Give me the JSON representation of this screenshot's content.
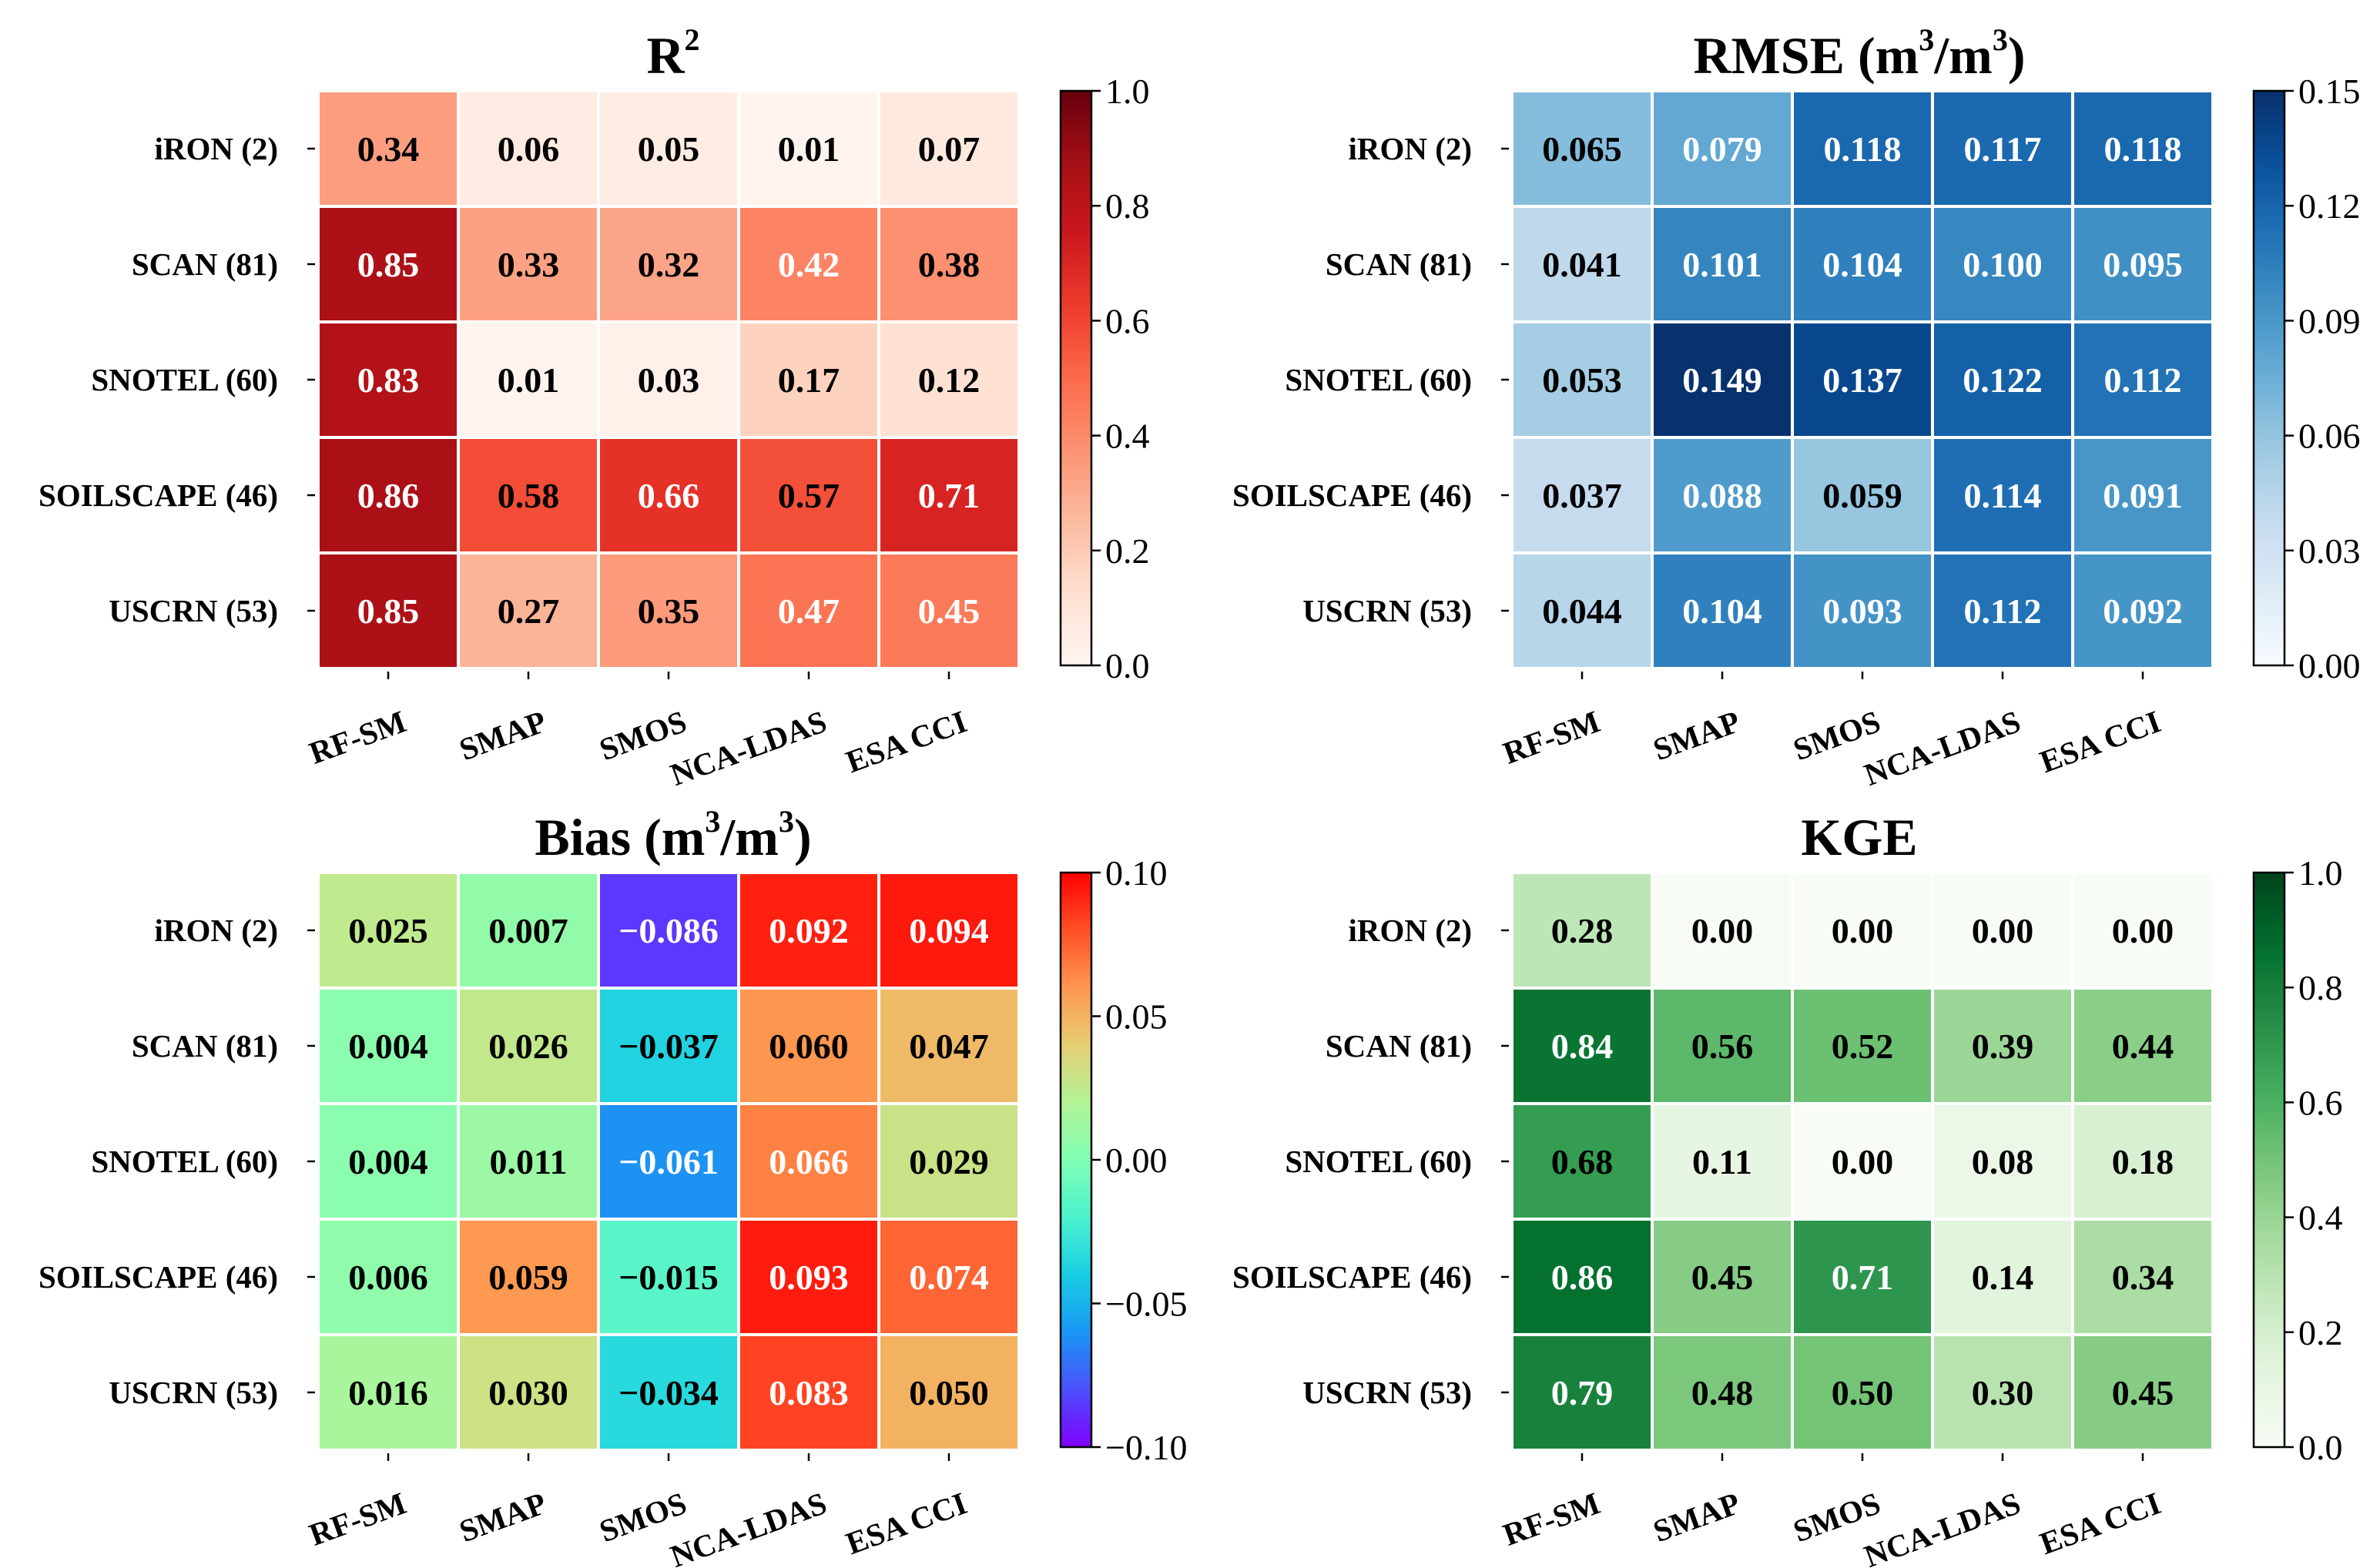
{
  "chart_data": [
    {
      "id": "r2",
      "type": "heatmap",
      "title_main": "R",
      "title_sup": "2",
      "title_tail": "",
      "rows": [
        "iRON (2)",
        "SCAN (81)",
        "SNOTEL (60)",
        "SOILSCAPE (46)",
        "USCRN (53)"
      ],
      "columns": [
        "RF-SM",
        "SMAP",
        "SMOS",
        "NCA-LDAS",
        "ESA CCI"
      ],
      "values": [
        [
          0.34,
          0.06,
          0.05,
          0.01,
          0.07
        ],
        [
          0.85,
          0.33,
          0.32,
          0.42,
          0.38
        ],
        [
          0.83,
          0.01,
          0.03,
          0.17,
          0.12
        ],
        [
          0.86,
          0.58,
          0.66,
          0.57,
          0.71
        ],
        [
          0.85,
          0.27,
          0.35,
          0.47,
          0.45
        ]
      ],
      "labels": [
        [
          "0.34",
          "0.06",
          "0.05",
          "0.01",
          "0.07"
        ],
        [
          "0.85",
          "0.33",
          "0.32",
          "0.42",
          "0.38"
        ],
        [
          "0.83",
          "0.01",
          "0.03",
          "0.17",
          "0.12"
        ],
        [
          "0.86",
          "0.58",
          "0.66",
          "0.57",
          "0.71"
        ],
        [
          "0.85",
          "0.27",
          "0.35",
          "0.47",
          "0.45"
        ]
      ],
      "colormap": "Reds",
      "vmin": 0.0,
      "vmax": 1.0,
      "colorbar_ticks": [
        0.0,
        0.2,
        0.4,
        0.6,
        0.8,
        1.0
      ],
      "colorbar_tick_labels": [
        "0.0",
        "0.2",
        "0.4",
        "0.6",
        "0.8",
        "1.0"
      ]
    },
    {
      "id": "rmse",
      "type": "heatmap",
      "title_main": "RMSE (m",
      "title_sup": "3",
      "title_tail": "/m",
      "title_sup2": "3",
      "title_close": ")",
      "rows": [
        "iRON (2)",
        "SCAN (81)",
        "SNOTEL (60)",
        "SOILSCAPE (46)",
        "USCRN (53)"
      ],
      "columns": [
        "RF-SM",
        "SMAP",
        "SMOS",
        "NCA-LDAS",
        "ESA CCI"
      ],
      "values": [
        [
          0.065,
          0.079,
          0.118,
          0.117,
          0.118
        ],
        [
          0.041,
          0.101,
          0.104,
          0.1,
          0.095
        ],
        [
          0.053,
          0.149,
          0.137,
          0.122,
          0.112
        ],
        [
          0.037,
          0.088,
          0.059,
          0.114,
          0.091
        ],
        [
          0.044,
          0.104,
          0.093,
          0.112,
          0.092
        ]
      ],
      "labels": [
        [
          "0.065",
          "0.079",
          "0.118",
          "0.117",
          "0.118"
        ],
        [
          "0.041",
          "0.101",
          "0.104",
          "0.100",
          "0.095"
        ],
        [
          "0.053",
          "0.149",
          "0.137",
          "0.122",
          "0.112"
        ],
        [
          "0.037",
          "0.088",
          "0.059",
          "0.114",
          "0.091"
        ],
        [
          "0.044",
          "0.104",
          "0.093",
          "0.112",
          "0.092"
        ]
      ],
      "colormap": "Blues",
      "vmin": 0.0,
      "vmax": 0.15,
      "colorbar_ticks": [
        0.0,
        0.03,
        0.06,
        0.09,
        0.12,
        0.15
      ],
      "colorbar_tick_labels": [
        "0.00",
        "0.03",
        "0.06",
        "0.09",
        "0.12",
        "0.15"
      ]
    },
    {
      "id": "bias",
      "type": "heatmap",
      "title_main": "Bias (m",
      "title_sup": "3",
      "title_tail": "/m",
      "title_sup2": "3",
      "title_close": ")",
      "rows": [
        "iRON (2)",
        "SCAN (81)",
        "SNOTEL (60)",
        "SOILSCAPE (46)",
        "USCRN (53)"
      ],
      "columns": [
        "RF-SM",
        "SMAP",
        "SMOS",
        "NCA-LDAS",
        "ESA CCI"
      ],
      "values": [
        [
          0.025,
          0.007,
          -0.086,
          0.092,
          0.094
        ],
        [
          0.004,
          0.026,
          -0.037,
          0.06,
          0.047
        ],
        [
          0.004,
          0.011,
          -0.061,
          0.066,
          0.029
        ],
        [
          0.006,
          0.059,
          -0.015,
          0.093,
          0.074
        ],
        [
          0.016,
          0.03,
          -0.034,
          0.083,
          0.05
        ]
      ],
      "labels": [
        [
          "0.025",
          "0.007",
          "−0.086",
          "0.092",
          "0.094"
        ],
        [
          "0.004",
          "0.026",
          "−0.037",
          "0.060",
          "0.047"
        ],
        [
          "0.004",
          "0.011",
          "−0.061",
          "0.066",
          "0.029"
        ],
        [
          "0.006",
          "0.059",
          "−0.015",
          "0.093",
          "0.074"
        ],
        [
          "0.016",
          "0.030",
          "−0.034",
          "0.083",
          "0.050"
        ]
      ],
      "colormap": "rainbow",
      "vmin": -0.1,
      "vmax": 0.1,
      "colorbar_ticks": [
        -0.1,
        -0.05,
        0.0,
        0.05,
        0.1
      ],
      "colorbar_tick_labels": [
        "−0.10",
        "−0.05",
        "0.00",
        "0.05",
        "0.10"
      ]
    },
    {
      "id": "kge",
      "type": "heatmap",
      "title_main": "KGE",
      "title_sup": "",
      "title_tail": "",
      "rows": [
        "iRON (2)",
        "SCAN (81)",
        "SNOTEL (60)",
        "SOILSCAPE (46)",
        "USCRN (53)"
      ],
      "columns": [
        "RF-SM",
        "SMAP",
        "SMOS",
        "NCA-LDAS",
        "ESA CCI"
      ],
      "values": [
        [
          0.28,
          0.0,
          0.0,
          0.0,
          0.0
        ],
        [
          0.84,
          0.56,
          0.52,
          0.39,
          0.44
        ],
        [
          0.68,
          0.11,
          0.0,
          0.08,
          0.18
        ],
        [
          0.86,
          0.45,
          0.71,
          0.14,
          0.34
        ],
        [
          0.79,
          0.48,
          0.5,
          0.3,
          0.45
        ]
      ],
      "labels": [
        [
          "0.28",
          "0.00",
          "0.00",
          "0.00",
          "0.00"
        ],
        [
          "0.84",
          "0.56",
          "0.52",
          "0.39",
          "0.44"
        ],
        [
          "0.68",
          "0.11",
          "0.00",
          "0.08",
          "0.18"
        ],
        [
          "0.86",
          "0.45",
          "0.71",
          "0.14",
          "0.34"
        ],
        [
          "0.79",
          "0.48",
          "0.50",
          "0.30",
          "0.45"
        ]
      ],
      "colormap": "Greens",
      "vmin": 0.0,
      "vmax": 1.0,
      "colorbar_ticks": [
        0.0,
        0.2,
        0.4,
        0.6,
        0.8,
        1.0
      ],
      "colorbar_tick_labels": [
        "0.0",
        "0.2",
        "0.4",
        "0.6",
        "0.8",
        "1.0"
      ]
    }
  ]
}
